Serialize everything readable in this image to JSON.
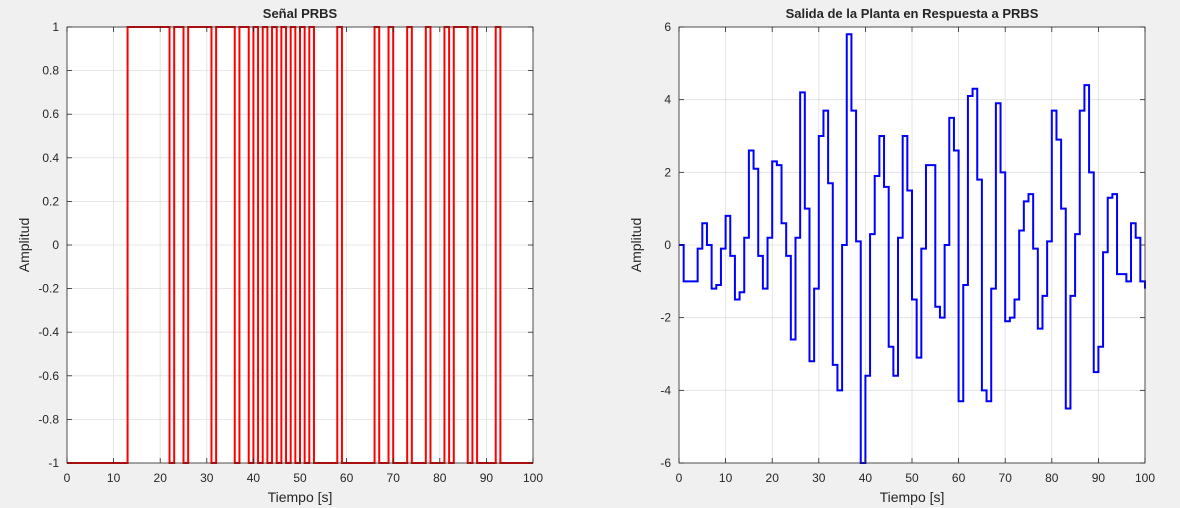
{
  "window": {
    "background": "#f0f0f0"
  },
  "chart_data": [
    {
      "type": "line",
      "step": true,
      "title": "Señal PRBS",
      "xlabel": "Tiempo [s]",
      "ylabel": "Amplitud",
      "xlim": [
        0,
        100
      ],
      "ylim": [
        -1,
        1
      ],
      "xticks": [
        0,
        10,
        20,
        30,
        40,
        50,
        60,
        70,
        80,
        90,
        100
      ],
      "yticks": [
        -1,
        -0.8,
        -0.6,
        -0.4,
        -0.2,
        0,
        0.2,
        0.4,
        0.6,
        0.8,
        1
      ],
      "xtick_labels": [
        "0",
        "10",
        "20",
        "30",
        "40",
        "50",
        "60",
        "70",
        "80",
        "90",
        "100"
      ],
      "ytick_labels": [
        "-1",
        "-0.8",
        "-0.6",
        "-0.4",
        "-0.2",
        "0",
        "0.2",
        "0.4",
        "0.6",
        "0.8",
        "1"
      ],
      "grid": true,
      "color": "#ff0000",
      "series": [
        {
          "x": [
            0,
            13,
            22,
            23,
            25,
            26,
            31,
            32,
            36,
            37,
            39,
            40,
            41,
            42,
            43,
            44,
            45,
            46,
            47,
            48,
            49,
            50,
            51,
            52,
            53,
            58,
            59,
            66,
            67,
            69,
            70,
            73,
            74,
            77,
            78,
            81,
            82,
            83,
            86,
            87,
            88,
            92,
            93,
            100
          ],
          "y": [
            -1,
            1,
            -1,
            1,
            -1,
            1,
            -1,
            1,
            -1,
            1,
            -1,
            1,
            -1,
            1,
            -1,
            1,
            -1,
            1,
            -1,
            1,
            -1,
            1,
            -1,
            1,
            -1,
            1,
            -1,
            1,
            -1,
            1,
            -1,
            1,
            -1,
            1,
            -1,
            1,
            -1,
            1,
            -1,
            1,
            -1,
            1,
            -1,
            -1
          ]
        }
      ]
    },
    {
      "type": "line",
      "step": true,
      "title": "Salida de la Planta en Respuesta a PRBS",
      "xlabel": "Tiempo [s]",
      "ylabel": "Amplitud",
      "xlim": [
        0,
        100
      ],
      "ylim": [
        -6,
        6
      ],
      "xticks": [
        0,
        10,
        20,
        30,
        40,
        50,
        60,
        70,
        80,
        90,
        100
      ],
      "yticks": [
        -6,
        -4,
        -2,
        0,
        2,
        4,
        6
      ],
      "xtick_labels": [
        "0",
        "10",
        "20",
        "30",
        "40",
        "50",
        "60",
        "70",
        "80",
        "90",
        "100"
      ],
      "ytick_labels": [
        "-6",
        "-4",
        "-2",
        "0",
        "2",
        "4",
        "6"
      ],
      "grid": true,
      "color": "#0000ff",
      "series": [
        {
          "x": [
            0,
            1,
            3,
            4,
            5,
            6,
            7,
            8,
            9,
            10,
            11,
            12,
            13,
            14,
            15,
            16,
            17,
            18,
            19,
            20,
            21,
            22,
            23,
            24,
            25,
            26,
            27,
            28,
            29,
            30,
            31,
            32,
            33,
            34,
            35,
            36,
            37,
            38,
            39,
            40,
            41,
            42,
            43,
            44,
            45,
            46,
            47,
            48,
            49,
            50,
            51,
            52,
            53,
            54,
            55,
            56,
            57,
            58,
            59,
            60,
            61,
            62,
            63,
            64,
            65,
            66,
            67,
            68,
            69,
            70,
            71,
            72,
            73,
            74,
            75,
            76,
            77,
            78,
            79,
            80,
            81,
            82,
            83,
            84,
            85,
            86,
            87,
            88,
            89,
            90,
            91,
            92,
            93,
            94,
            95,
            96,
            97,
            98,
            99,
            100
          ],
          "y": [
            0,
            -1,
            -1,
            -0.1,
            0.6,
            0,
            -1.2,
            -1.1,
            -0.1,
            0.8,
            -0.3,
            -1.5,
            -1.3,
            0.2,
            2.6,
            2.1,
            -0.3,
            -1.2,
            0.2,
            2.3,
            2.2,
            0.6,
            -0.3,
            -2.6,
            0.2,
            4.2,
            1,
            -3.2,
            -1.2,
            3,
            3.7,
            1.7,
            -3.3,
            -4,
            0,
            5.8,
            3.7,
            0.1,
            -6,
            -3.6,
            0.3,
            1.9,
            3,
            1.6,
            -2.8,
            -3.6,
            0.2,
            3,
            1.5,
            -1.5,
            -3.1,
            -0.1,
            2.2,
            2.2,
            -1.7,
            -2,
            0,
            3.5,
            2.6,
            -4.3,
            -1.1,
            4.1,
            4.3,
            1.8,
            -4,
            -4.3,
            -1.2,
            3.9,
            2,
            -2.1,
            -2,
            -1.5,
            0.4,
            1.2,
            1.4,
            -0.1,
            -2.3,
            -1.4,
            0.1,
            3.7,
            2.9,
            1,
            -4.5,
            -1.4,
            0.3,
            3.7,
            4.4,
            2,
            -3.5,
            -2.8,
            -0.2,
            1.3,
            1.4,
            -0.8,
            -0.8,
            -1,
            0.6,
            0.2,
            -1,
            -1.2
          ]
        }
      ]
    }
  ]
}
